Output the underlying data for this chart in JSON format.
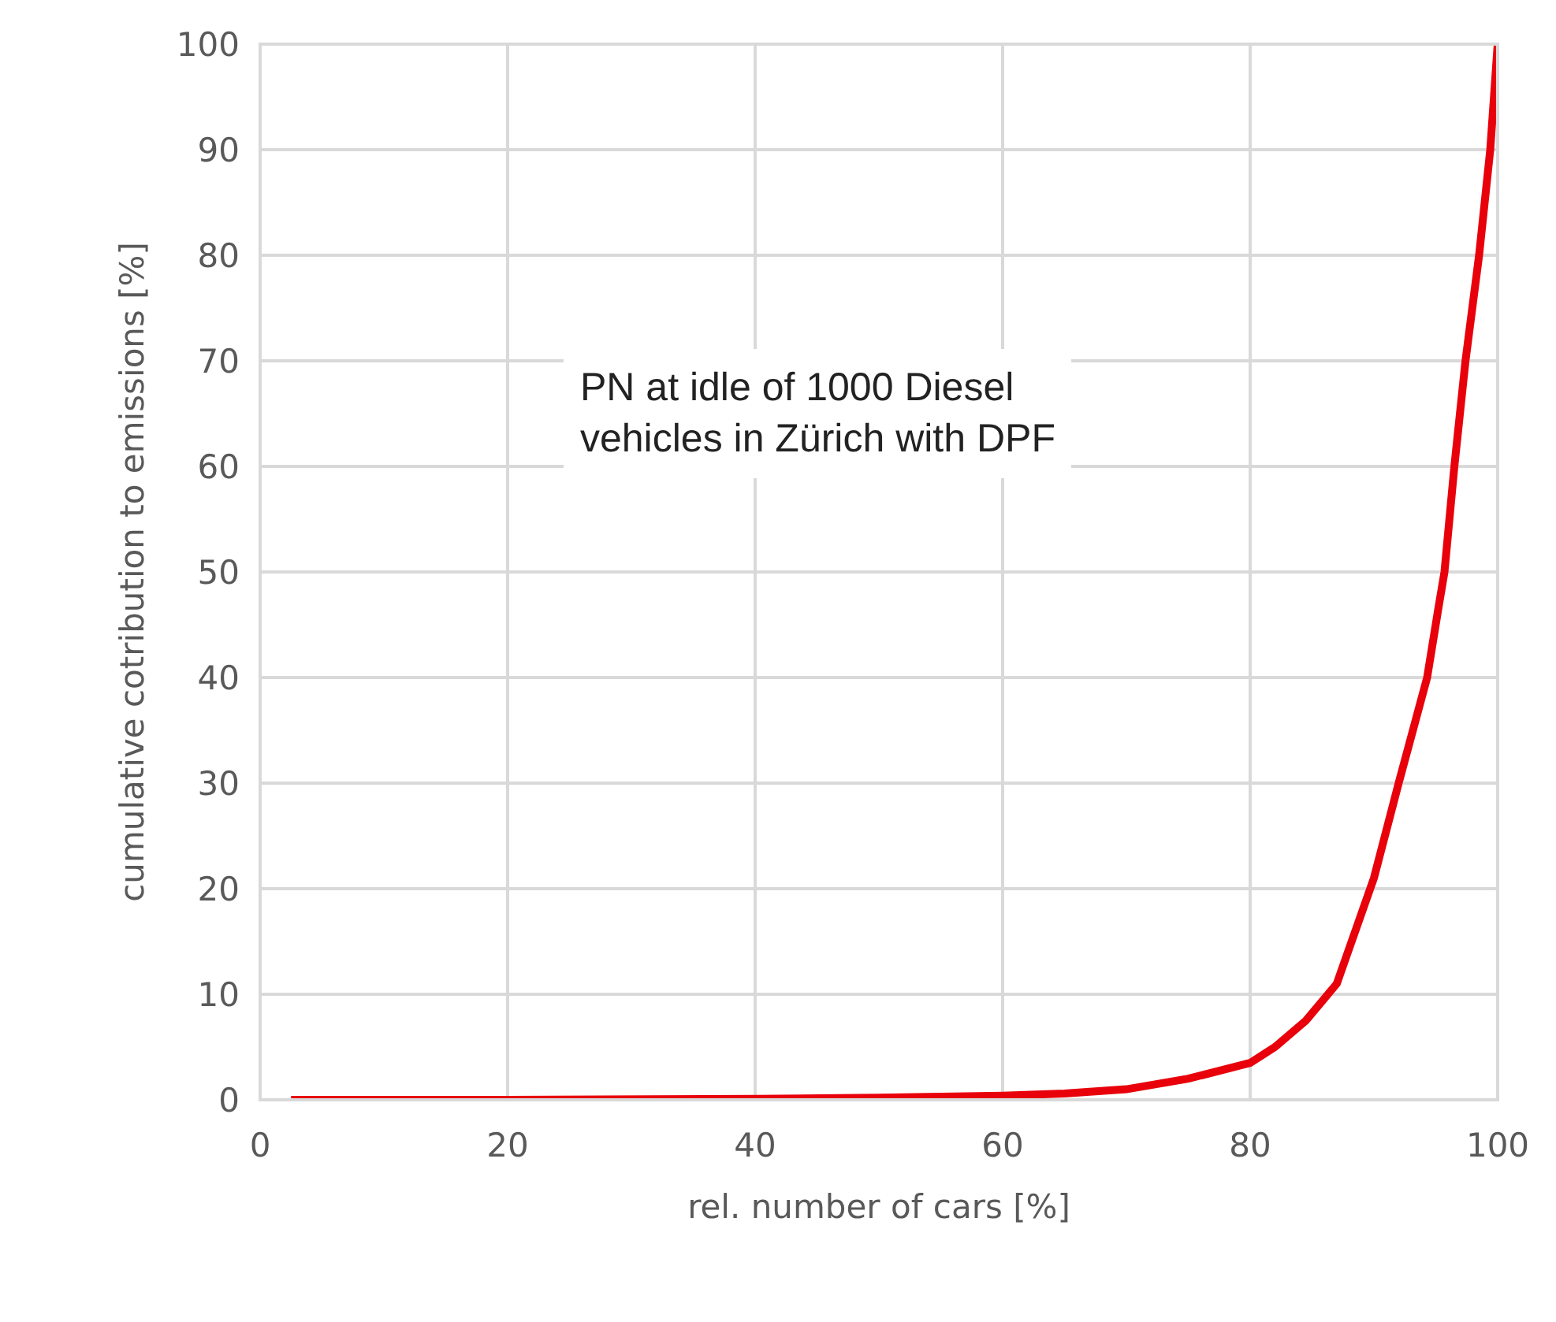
{
  "chart_data": {
    "type": "line",
    "xlabel": "rel. number of cars [%]",
    "ylabel": "cumulative cotribution to emissions [%]",
    "annotations": [
      "PN at idle of 1000 Diesel\nvehicles in Zürich with DPF"
    ],
    "x": [
      2.5,
      20,
      40,
      50,
      60,
      65,
      70,
      75,
      80,
      82,
      84.5,
      87,
      90,
      92,
      94.3,
      95.2,
      95.7,
      96.5,
      97.4,
      98.5,
      99.4,
      100
    ],
    "series": [
      {
        "color": "#e8000b",
        "values": [
          0,
          0,
          0.1,
          0.2,
          0.4,
          0.6,
          1,
          2,
          3.5,
          5,
          7.5,
          11,
          21,
          30,
          40,
          46.5,
          50,
          60,
          70,
          80,
          90,
          100
        ]
      }
    ],
    "xlim": [
      0,
      100
    ],
    "xticks": [
      0,
      20,
      40,
      60,
      80,
      100
    ],
    "ylim": [
      0,
      100
    ],
    "yticks": [
      0,
      10,
      20,
      30,
      40,
      50,
      60,
      70,
      80,
      90,
      100
    ],
    "grid": true,
    "marker": "none",
    "line_style": "solid"
  }
}
